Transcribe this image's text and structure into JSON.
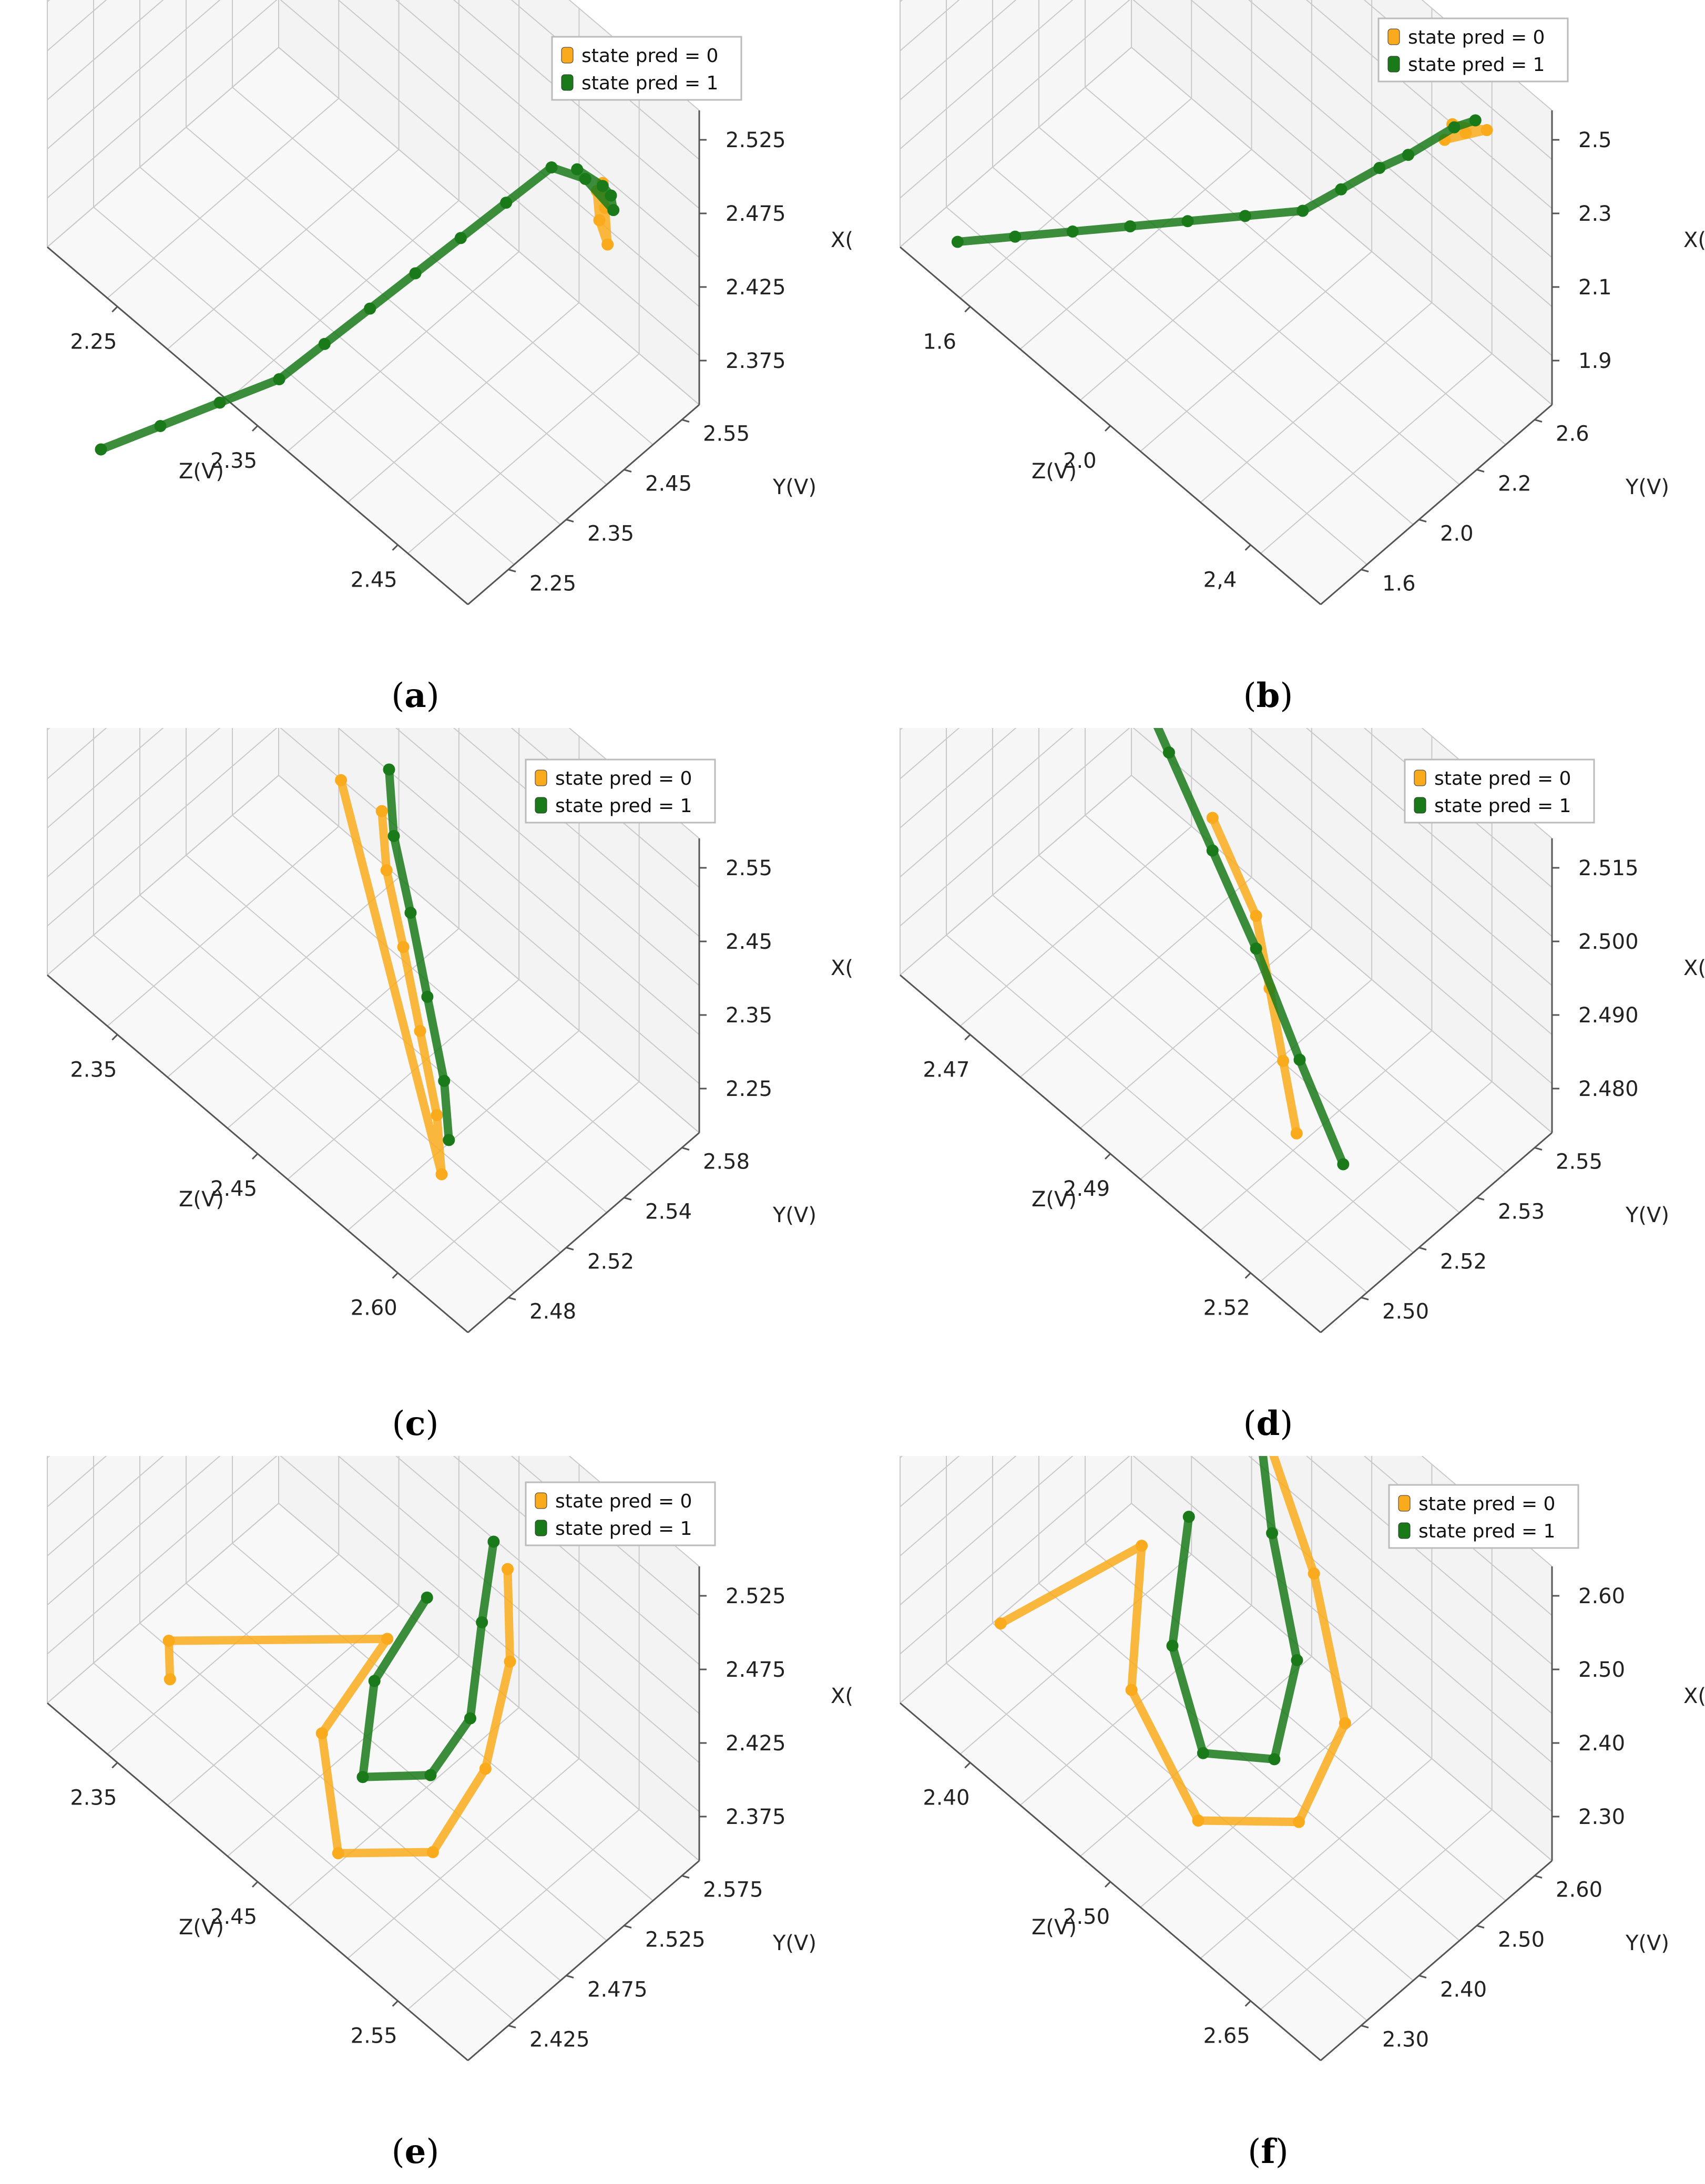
{
  "figure": {
    "colors": {
      "state0": "#f9ab1d",
      "state1": "#1a7a1a",
      "grid": "#c9c9c9",
      "axis": "#555555",
      "pane": "#f3f3f3"
    }
  },
  "chart_data": [
    {
      "panel": "a",
      "type": "scatter3d",
      "caption": {
        "open": "(",
        "letter": "a",
        "close": ")"
      },
      "legend": [
        "state pred = 0",
        "state pred = 1"
      ],
      "xlabel": "X(V)",
      "ylabel": "Y(V)",
      "zlabel": "Z(V)",
      "x_ticks": [
        "2.525",
        "2.475",
        "2.425",
        "2.375"
      ],
      "y_ticks": [
        "2.55",
        "2.45",
        "2.35",
        "2.25"
      ],
      "z_ticks": [
        "2.25",
        "2.35",
        "2.45"
      ],
      "xlim": [
        2.35,
        2.55
      ],
      "ylim": [
        2.2,
        2.6
      ],
      "zlim": [
        2.2,
        2.5
      ],
      "series": [
        {
          "name": "state pred = 0",
          "color": "#f9ab1d",
          "points": [
            [
              2.49,
              2.52,
              2.46
            ],
            [
              2.485,
              2.5,
              2.47
            ],
            [
              2.48,
              2.49,
              2.48
            ],
            [
              2.49,
              2.51,
              2.47
            ],
            [
              2.492,
              2.53,
              2.46
            ]
          ]
        },
        {
          "name": "state pred = 1",
          "color": "#1a7a1a",
          "points": [
            [
              2.23,
              2.22,
              2.23
            ],
            [
              2.26,
              2.25,
              2.26
            ],
            [
              2.29,
              2.28,
              2.29
            ],
            [
              2.32,
              2.31,
              2.32
            ],
            [
              2.35,
              2.34,
              2.34
            ],
            [
              2.38,
              2.37,
              2.36
            ],
            [
              2.41,
              2.4,
              2.38
            ],
            [
              2.44,
              2.43,
              2.4
            ],
            [
              2.47,
              2.46,
              2.42
            ],
            [
              2.5,
              2.49,
              2.44
            ],
            [
              2.505,
              2.5,
              2.46
            ],
            [
              2.5,
              2.5,
              2.48
            ],
            [
              2.495,
              2.52,
              2.47
            ],
            [
              2.49,
              2.53,
              2.46
            ],
            [
              2.5,
              2.51,
              2.45
            ]
          ]
        }
      ]
    },
    {
      "panel": "b",
      "type": "scatter3d",
      "caption": {
        "open": "(",
        "letter": "b",
        "close": ")"
      },
      "legend": [
        "state pred = 0",
        "state pred = 1"
      ],
      "xlabel": "X(V)",
      "ylabel": "Y(V)",
      "zlabel": "Z(V)",
      "x_ticks": [
        "2.5",
        "2.3",
        "2.1",
        "1.9"
      ],
      "y_ticks": [
        "2.6",
        "2.2",
        "2.0",
        "1.6"
      ],
      "z_ticks": [
        "1.6",
        "2.0",
        "2,4"
      ],
      "xlim": [
        1.8,
        2.5
      ],
      "ylim": [
        1.5,
        2.7
      ],
      "zlim": [
        1.5,
        2.6
      ],
      "series": [
        {
          "name": "state pred = 0",
          "color": "#f9ab1d",
          "points": [
            [
              2.39,
              2.55,
              2.45
            ],
            [
              2.37,
              2.5,
              2.42
            ],
            [
              2.4,
              2.6,
              2.48
            ],
            [
              2.36,
              2.58,
              2.4
            ]
          ]
        },
        {
          "name": "state pred = 1",
          "color": "#1a7a1a",
          "points": [
            [
              1.85,
              1.6,
              1.6
            ],
            [
              1.9,
              1.7,
              1.7
            ],
            [
              1.95,
              1.8,
              1.8
            ],
            [
              2.0,
              1.9,
              1.9
            ],
            [
              2.05,
              2.0,
              2.0
            ],
            [
              2.1,
              2.1,
              2.1
            ],
            [
              2.15,
              2.2,
              2.2
            ],
            [
              2.2,
              2.3,
              2.25
            ],
            [
              2.25,
              2.4,
              2.3
            ],
            [
              2.3,
              2.45,
              2.35
            ],
            [
              2.38,
              2.55,
              2.42
            ],
            [
              2.4,
              2.6,
              2.45
            ]
          ]
        }
      ]
    },
    {
      "panel": "c",
      "type": "scatter3d",
      "caption": {
        "open": "(",
        "letter": "c",
        "close": ")"
      },
      "legend": [
        "state pred = 0",
        "state pred = 1"
      ],
      "xlabel": "X(V)",
      "ylabel": "Y(V)",
      "zlabel": "Z(V)",
      "x_ticks": [
        "2.55",
        "2.45",
        "2.35",
        "2.25"
      ],
      "y_ticks": [
        "2.58",
        "2.54",
        "2.52",
        "2.48"
      ],
      "z_ticks": [
        "2.35",
        "2.45",
        "2.60"
      ],
      "xlim": [
        2.2,
        2.6
      ],
      "ylim": [
        2.47,
        2.59
      ],
      "zlim": [
        2.3,
        2.65
      ],
      "series": [
        {
          "name": "state pred = 0",
          "color": "#f9ab1d",
          "points": [
            [
              2.45,
              2.55,
              2.45
            ],
            [
              2.42,
              2.54,
              2.47
            ],
            [
              2.38,
              2.53,
              2.5
            ],
            [
              2.33,
              2.52,
              2.53
            ],
            [
              2.28,
              2.51,
              2.56
            ],
            [
              2.25,
              2.5,
              2.58
            ],
            [
              2.4,
              2.56,
              2.4
            ]
          ]
        },
        {
          "name": "state pred = 1",
          "color": "#1a7a1a",
          "points": [
            [
              2.47,
              2.56,
              2.44
            ],
            [
              2.43,
              2.55,
              2.46
            ],
            [
              2.39,
              2.54,
              2.49
            ],
            [
              2.34,
              2.53,
              2.52
            ],
            [
              2.29,
              2.52,
              2.55
            ],
            [
              2.26,
              2.51,
              2.57
            ]
          ]
        }
      ]
    },
    {
      "panel": "d",
      "type": "scatter3d",
      "caption": {
        "open": "(",
        "letter": "d",
        "close": ")"
      },
      "legend": [
        "state pred = 0",
        "state pred = 1"
      ],
      "xlabel": "X(V)",
      "ylabel": "Y(V)",
      "zlabel": "Z(V)",
      "x_ticks": [
        "2.515",
        "2.500",
        "2.490",
        "2.480"
      ],
      "y_ticks": [
        "2.55",
        "2.53",
        "2.52",
        "2.50"
      ],
      "z_ticks": [
        "2.47",
        "2.49",
        "2.52"
      ],
      "xlim": [
        2.475,
        2.52
      ],
      "ylim": [
        2.49,
        2.56
      ],
      "zlim": [
        2.46,
        2.53
      ],
      "series": [
        {
          "name": "state pred = 0",
          "color": "#f9ab1d",
          "points": [
            [
              2.505,
              2.53,
              2.49
            ],
            [
              2.5,
              2.525,
              2.5
            ],
            [
              2.495,
              2.52,
              2.505
            ],
            [
              2.49,
              2.515,
              2.51
            ],
            [
              2.485,
              2.51,
              2.515
            ]
          ]
        },
        {
          "name": "state pred = 1",
          "color": "#1a7a1a",
          "points": [
            [
              2.51,
              2.54,
              2.47
            ],
            [
              2.505,
              2.535,
              2.48
            ],
            [
              2.5,
              2.53,
              2.49
            ],
            [
              2.495,
              2.525,
              2.5
            ],
            [
              2.488,
              2.52,
              2.51
            ],
            [
              2.482,
              2.515,
              2.52
            ]
          ]
        }
      ]
    },
    {
      "panel": "e",
      "type": "scatter3d",
      "caption": {
        "open": "(",
        "letter": "e",
        "close": ")"
      },
      "legend": [
        "state pred = 0",
        "state pred = 1"
      ],
      "xlabel": "X(V)",
      "ylabel": "Y(V)",
      "zlabel": "Z(V)",
      "x_ticks": [
        "2.525",
        "2.475",
        "2.425",
        "2.375"
      ],
      "y_ticks": [
        "2.575",
        "2.525",
        "2.475",
        "2.425"
      ],
      "z_ticks": [
        "2.35",
        "2.45",
        "2.55"
      ],
      "xlim": [
        2.36,
        2.55
      ],
      "ylim": [
        2.41,
        2.59
      ],
      "zlim": [
        2.3,
        2.6
      ],
      "series": [
        {
          "name": "state pred = 0",
          "color": "#f9ab1d",
          "points": [
            [
              2.5,
              2.55,
              2.5
            ],
            [
              2.47,
              2.53,
              2.52
            ],
            [
              2.43,
              2.5,
              2.53
            ],
            [
              2.39,
              2.47,
              2.52
            ],
            [
              2.38,
              2.44,
              2.48
            ],
            [
              2.42,
              2.46,
              2.45
            ],
            [
              2.46,
              2.5,
              2.46
            ],
            [
              2.41,
              2.45,
              2.35
            ],
            [
              2.4,
              2.44,
              2.36
            ]
          ]
        },
        {
          "name": "state pred = 1",
          "color": "#1a7a1a",
          "points": [
            [
              2.51,
              2.55,
              2.49
            ],
            [
              2.48,
              2.53,
              2.5
            ],
            [
              2.44,
              2.51,
              2.51
            ],
            [
              2.41,
              2.49,
              2.5
            ],
            [
              2.4,
              2.47,
              2.47
            ],
            [
              2.44,
              2.49,
              2.46
            ],
            [
              2.48,
              2.52,
              2.47
            ]
          ]
        }
      ]
    },
    {
      "panel": "f",
      "type": "scatter3d",
      "caption": {
        "open": "(",
        "letter": "f",
        "close": ")"
      },
      "legend": [
        "state pred = 0",
        "state pred = 1"
      ],
      "xlabel": "X(V)",
      "ylabel": "Y(V)",
      "zlabel": "Z(V)",
      "x_ticks": [
        "2.60",
        "2.50",
        "2.40",
        "2.30"
      ],
      "y_ticks": [
        "2.60",
        "2.50",
        "2.40",
        "2.30"
      ],
      "z_ticks": [
        "2.40",
        "2.50",
        "2.65"
      ],
      "xlim": [
        2.25,
        2.65
      ],
      "ylim": [
        2.25,
        2.65
      ],
      "zlim": [
        2.35,
        2.7
      ],
      "series": [
        {
          "name": "state pred = 0",
          "color": "#f9ab1d",
          "points": [
            [
              2.58,
              2.58,
              2.5
            ],
            [
              2.5,
              2.55,
              2.55
            ],
            [
              2.4,
              2.5,
              2.6
            ],
            [
              2.32,
              2.42,
              2.6
            ],
            [
              2.3,
              2.35,
              2.55
            ],
            [
              2.36,
              2.38,
              2.48
            ],
            [
              2.46,
              2.46,
              2.45
            ],
            [
              2.38,
              2.32,
              2.4
            ]
          ]
        },
        {
          "name": "state pred = 1",
          "color": "#1a7a1a",
          "points": [
            [
              2.6,
              2.58,
              2.49
            ],
            [
              2.52,
              2.54,
              2.52
            ],
            [
              2.43,
              2.5,
              2.56
            ],
            [
              2.35,
              2.44,
              2.57
            ],
            [
              2.33,
              2.4,
              2.53
            ],
            [
              2.4,
              2.43,
              2.49
            ],
            [
              2.5,
              2.5,
              2.47
            ]
          ]
        }
      ]
    }
  ]
}
